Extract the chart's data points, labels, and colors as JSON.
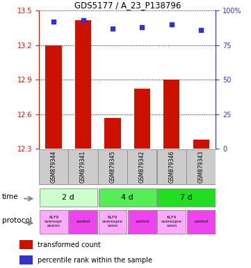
{
  "title": "GDS5177 / A_23_P138796",
  "samples": [
    "GSM879344",
    "GSM879341",
    "GSM879345",
    "GSM879342",
    "GSM879346",
    "GSM879343"
  ],
  "bar_values": [
    13.2,
    13.42,
    12.57,
    12.82,
    12.9,
    12.38
  ],
  "blue_values": [
    92,
    93,
    87,
    88,
    90,
    86
  ],
  "ylim_left": [
    12.3,
    13.5
  ],
  "ylim_right": [
    0,
    100
  ],
  "yticks_left": [
    12.3,
    12.6,
    12.9,
    13.2,
    13.5
  ],
  "yticks_right": [
    0,
    25,
    50,
    75,
    100
  ],
  "ytick_right_labels": [
    "0",
    "25",
    "50",
    "75",
    "100%"
  ],
  "bar_color": "#cc1100",
  "blue_color": "#3333cc",
  "grid_color": "#000000",
  "time_labels": [
    "2 d",
    "4 d",
    "7 d"
  ],
  "time_colors": [
    "#ccffcc",
    "#55ee55",
    "#22dd22"
  ],
  "protocol_klf9_color": "#ffaaff",
  "protocol_control_color": "#ee44ee",
  "protocol_labels": [
    "KLF9\noverexpr\nession",
    "control",
    "KLF9\noverexpre\nssion",
    "control",
    "KLF9\noverexpre\nssion",
    "control"
  ],
  "sample_box_color": "#cccccc",
  "legend_red_label": "transformed count",
  "legend_blue_label": "percentile rank within the sample"
}
